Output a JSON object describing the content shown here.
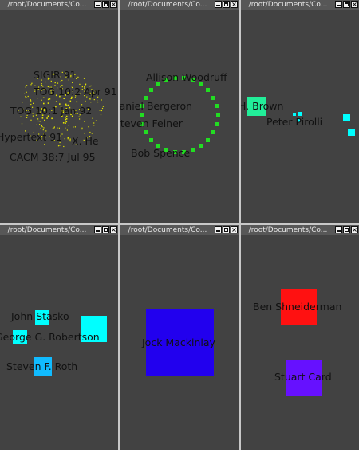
{
  "window_title": "/root/Documents/Co...",
  "windows": [
    {
      "labels": [
        "SIGIR 91",
        "TOG 10:2 Apr 91",
        "TOG 10:1 Jan 92",
        "Hypertext 91",
        "X. He",
        "CACM 38:7 Jul 95"
      ]
    },
    {
      "labels": [
        "Allison Woodruff",
        "Daniel Bergeron",
        "Steven Feiner",
        "Bob Spence"
      ]
    },
    {
      "labels": [
        "H. Brown",
        "Peter Pirolli"
      ]
    },
    {
      "labels": [
        "John Stasko",
        "George G. Robertson",
        "Steven F. Roth"
      ]
    },
    {
      "labels": [
        "Jock Mackinlay"
      ]
    },
    {
      "labels": [
        "Ben Shneiderman",
        "Stuart Card"
      ]
    }
  ],
  "colors": {
    "window_bg": "#424242",
    "titlebar_bg": "#575757",
    "cluster_yellow": "#e6e600",
    "ring_green": "#22dd22",
    "cyan": "#00ffff",
    "teal": "#22ee99",
    "sky_blue": "#11bbff",
    "blue": "#2200ee",
    "red": "#ff1111",
    "purple": "#6611ff"
  },
  "icons": [
    "minimize-icon",
    "maximize-icon",
    "close-icon"
  ]
}
